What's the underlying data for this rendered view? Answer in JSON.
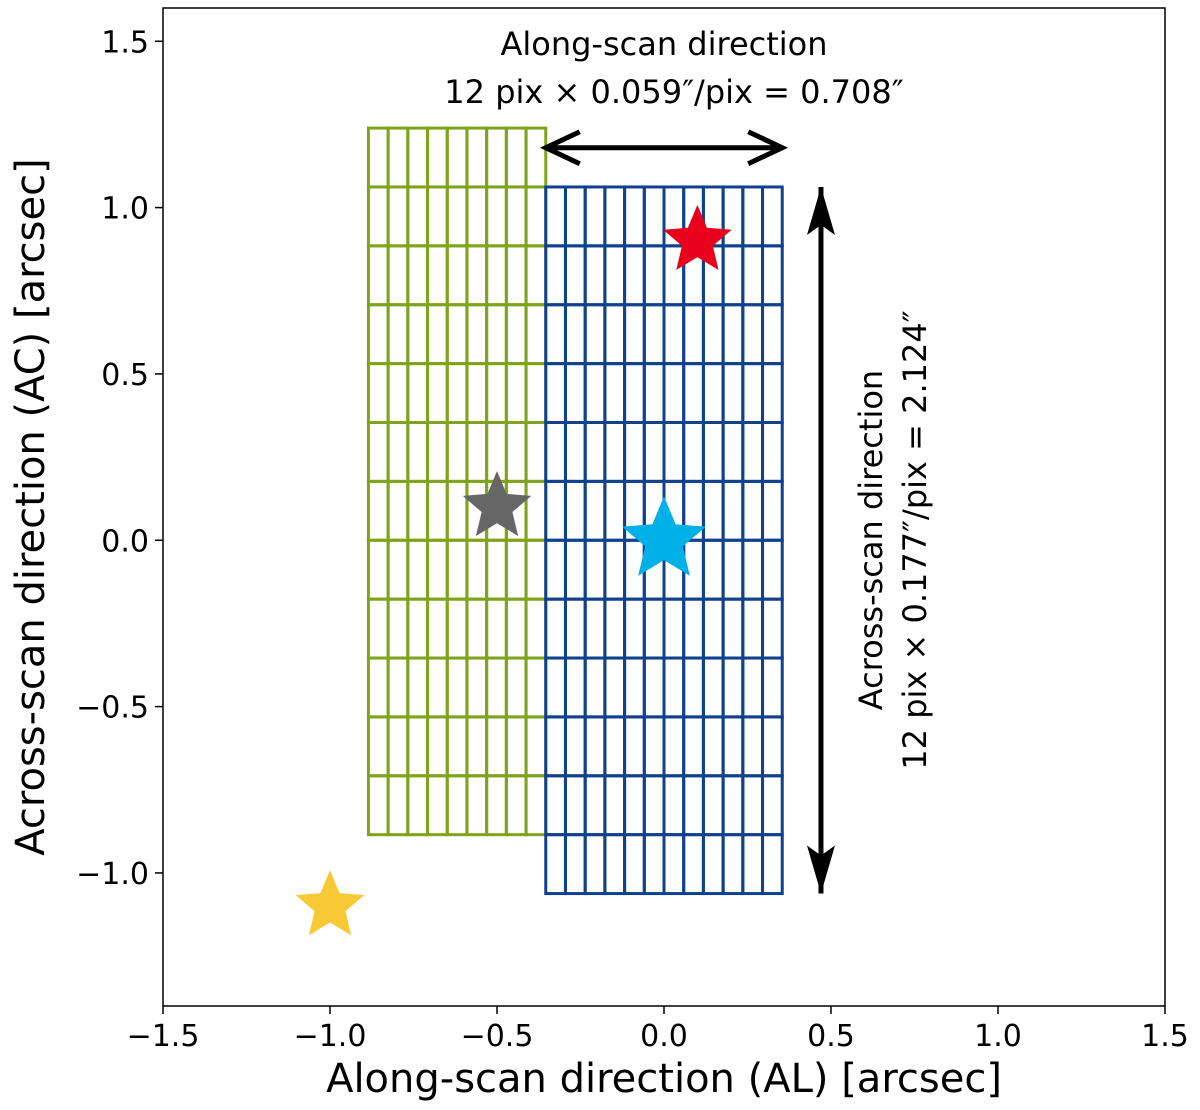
{
  "chart_data": {
    "type": "scatter",
    "title": "",
    "xlabel": "Along-scan direction (AL) [arcsec]",
    "ylabel": "Across-scan direction (AC) [arcsec]",
    "xlim": [
      -1.5,
      1.5
    ],
    "ylim": [
      -1.4,
      1.6
    ],
    "grid": false,
    "x_ticks": [
      -1.5,
      -1.0,
      -0.5,
      0.0,
      0.5,
      1.0,
      1.5
    ],
    "y_ticks": [
      -1.0,
      -0.5,
      0.0,
      0.5,
      1.0,
      1.5
    ],
    "x_tick_labels": [
      "−1.5",
      "−1.0",
      "−0.5",
      "0.0",
      "0.5",
      "1.0",
      "1.5"
    ],
    "y_tick_labels": [
      "−1.0",
      "−0.5",
      "0.0",
      "0.5",
      "1.0",
      "1.5"
    ],
    "grids": [
      {
        "color": "#7fa31a",
        "x_range": [
          -0.885,
          -0.354
        ],
        "y_range": [
          -0.885,
          1.239
        ],
        "cols": 9,
        "rows": 12
      },
      {
        "color": "#0f418f",
        "x_range": [
          -0.354,
          0.354
        ],
        "y_range": [
          -1.062,
          1.062
        ],
        "cols": 12,
        "rows": 12
      }
    ],
    "stars": [
      {
        "x": 0.1,
        "y": 0.9,
        "color": "#e8001c",
        "size": "small"
      },
      {
        "x": -0.5,
        "y": 0.1,
        "color": "#666666",
        "size": "small"
      },
      {
        "x": 0.0,
        "y": 0.0,
        "color": "#00b0e6",
        "size": "large"
      },
      {
        "x": -1.0,
        "y": -1.1,
        "color": "#f8c935",
        "size": "small"
      }
    ],
    "arrows": [
      {
        "orientation": "horizontal",
        "from": [
          -0.354,
          1.18
        ],
        "to": [
          0.354,
          1.18
        ]
      },
      {
        "orientation": "vertical",
        "from": [
          0.47,
          -1.062
        ],
        "to": [
          0.47,
          1.062
        ]
      }
    ],
    "annotations": {
      "along_title": "Along-scan direction",
      "along_formula": "12 pix × 0.059″/pix = 0.708″",
      "across_title": "Across-scan direction",
      "across_formula": "12 pix × 0.177″/pix = 2.124″"
    }
  }
}
